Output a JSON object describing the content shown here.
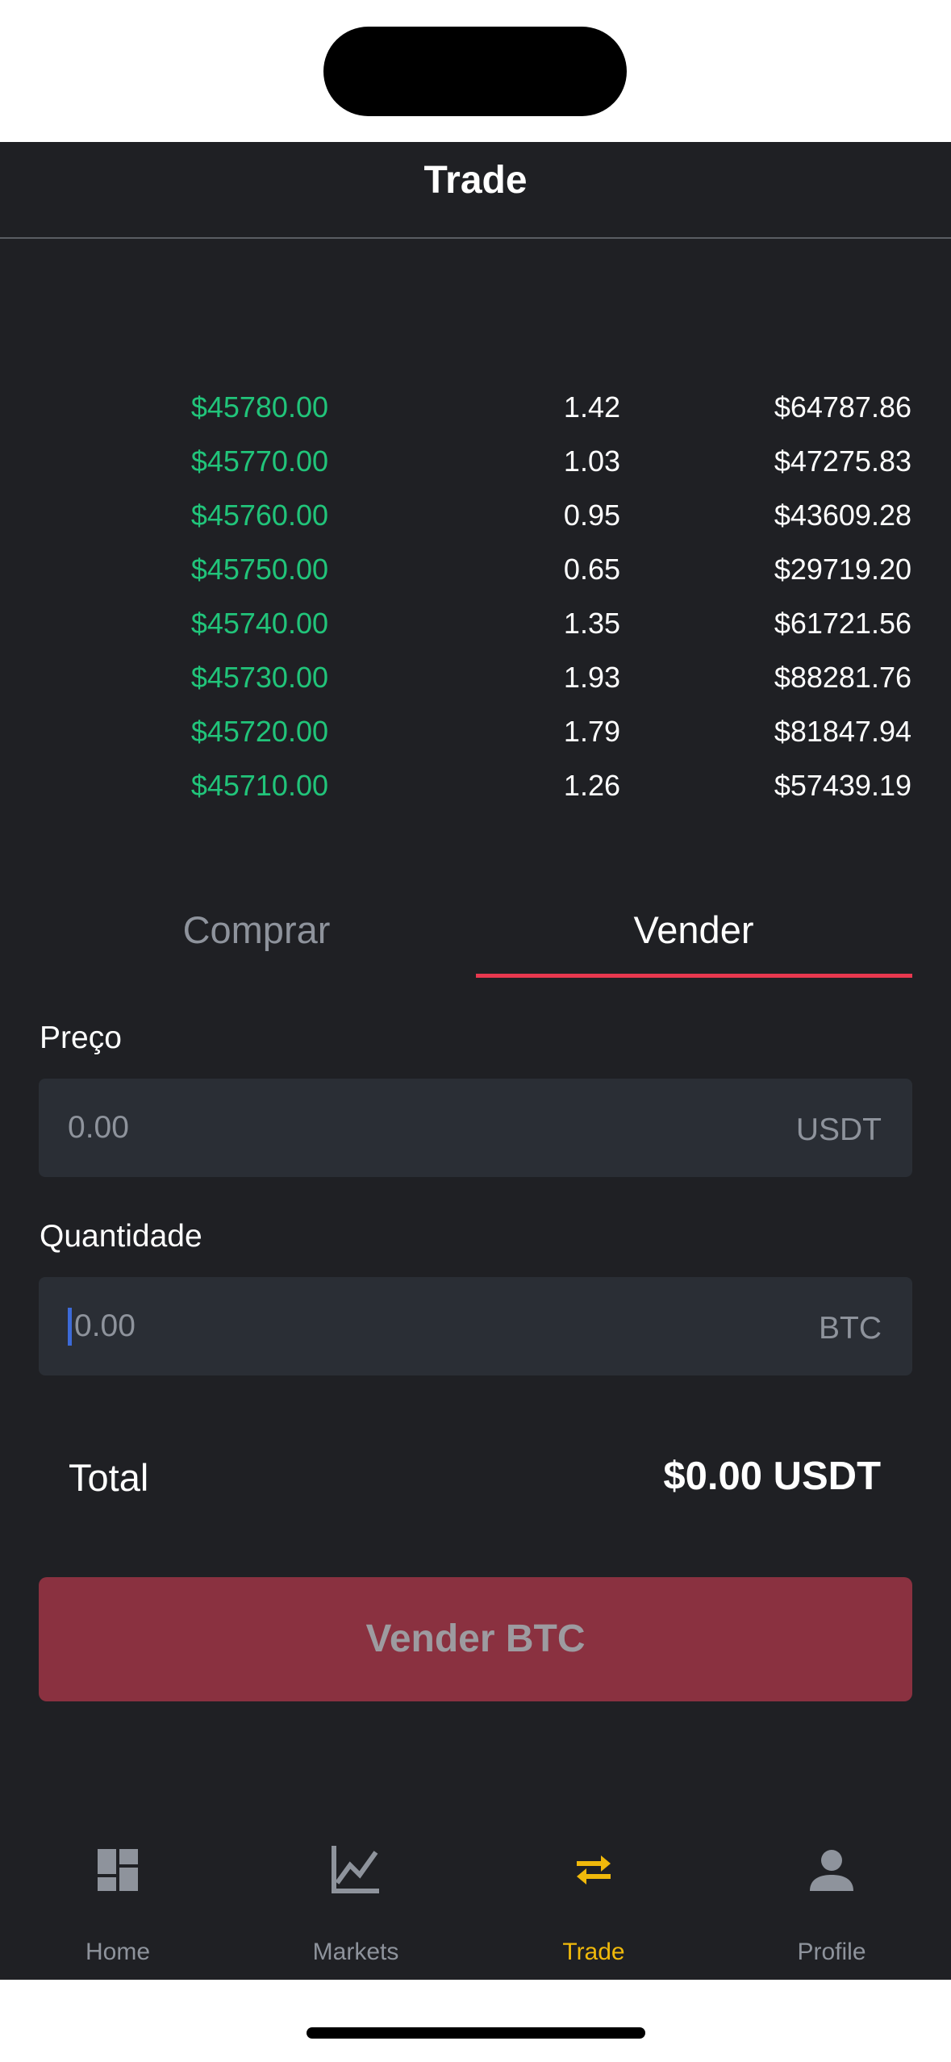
{
  "header": {
    "title": "Trade"
  },
  "order_book": {
    "rows": [
      {
        "price": "$45780.00",
        "amount": "1.42",
        "total": "$64787.86"
      },
      {
        "price": "$45770.00",
        "amount": "1.03",
        "total": "$47275.83"
      },
      {
        "price": "$45760.00",
        "amount": "0.95",
        "total": "$43609.28"
      },
      {
        "price": "$45750.00",
        "amount": "0.65",
        "total": "$29719.20"
      },
      {
        "price": "$45740.00",
        "amount": "1.35",
        "total": "$61721.56"
      },
      {
        "price": "$45730.00",
        "amount": "1.93",
        "total": "$88281.76"
      },
      {
        "price": "$45720.00",
        "amount": "1.79",
        "total": "$81847.94"
      },
      {
        "price": "$45710.00",
        "amount": "1.26",
        "total": "$57439.19"
      }
    ]
  },
  "tabs": {
    "buy": "Comprar",
    "sell": "Vender",
    "active": "sell"
  },
  "form": {
    "price": {
      "label": "Preço",
      "placeholder": "0.00",
      "unit": "USDT"
    },
    "quantity": {
      "label": "Quantidade",
      "placeholder": "0.00",
      "unit": "BTC"
    },
    "total_label": "Total",
    "total_value": "$0.00 USDT",
    "submit_label": "Vender BTC"
  },
  "bottom_nav": {
    "items": [
      {
        "label": "Home",
        "icon": "dashboard-icon"
      },
      {
        "label": "Markets",
        "icon": "chart-icon"
      },
      {
        "label": "Trade",
        "icon": "swap-arrows-icon"
      },
      {
        "label": "Profile",
        "icon": "person-icon"
      }
    ],
    "active": "Trade"
  },
  "colors": {
    "background": "#1f2024",
    "bid_price": "#21c47a",
    "sell_accent": "#e8384f",
    "nav_active": "#f0b90b",
    "muted": "#8e939c"
  }
}
